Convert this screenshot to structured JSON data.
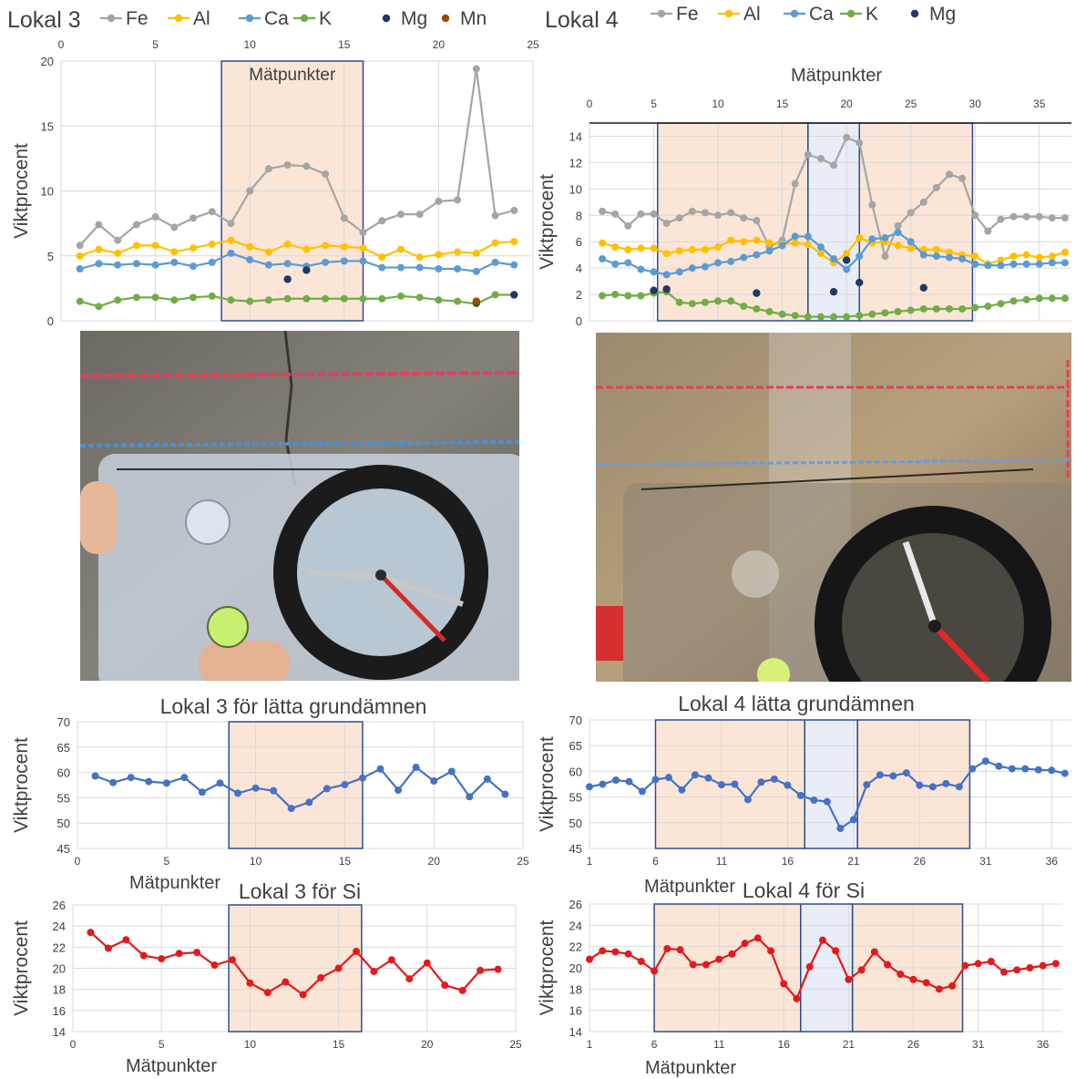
{
  "colors": {
    "Fe": "#a5a5a5",
    "Al": "#ffc000",
    "Ca": "#5b9bd5",
    "K": "#70ad47",
    "Mg": "#203864",
    "Mn": "#9e480e",
    "light": "#4472c4",
    "Si": "#e31a1c",
    "measure_fill": "#fbe5d6",
    "window_fill": "#e9edf7",
    "box_stroke": "#2f4f8f"
  },
  "photos": {
    "lokal3": {
      "description_icon": "rock-surface-with-compass-photo"
    },
    "lokal4": {
      "description_icon": "rock-surface-with-compass-photo"
    }
  },
  "chart_data": [
    {
      "id": "lokal3_main",
      "type": "line",
      "title": "Lokal 3",
      "box_label": "Mätpunkter",
      "ylabel": "Viktprocent",
      "xlim": [
        0,
        25
      ],
      "ylim": [
        0,
        20
      ],
      "xticks": [
        0,
        5,
        10,
        15,
        20,
        25
      ],
      "yticks": [
        0,
        5,
        10,
        15,
        20
      ],
      "x_axis_position": "top",
      "grid": true,
      "legend": "top",
      "shaded_regions": [
        {
          "from": 8.5,
          "to": 16,
          "kind": "measure"
        }
      ],
      "series": [
        {
          "name": "Fe",
          "style": "line",
          "x": [
            1,
            2,
            3,
            4,
            5,
            6,
            7,
            8,
            9,
            10,
            11,
            12,
            13,
            14,
            15,
            16,
            17,
            18,
            19,
            20,
            21,
            22,
            23,
            24
          ],
          "values": [
            5.8,
            7.4,
            6.2,
            7.4,
            8.0,
            7.2,
            7.9,
            8.4,
            7.5,
            10.0,
            11.7,
            12.0,
            11.9,
            11.3,
            7.9,
            6.8,
            7.7,
            8.2,
            8.2,
            9.2,
            9.3,
            19.4,
            8.1,
            8.5
          ]
        },
        {
          "name": "Al",
          "style": "line",
          "x": [
            1,
            2,
            3,
            4,
            5,
            6,
            7,
            8,
            9,
            10,
            11,
            12,
            13,
            14,
            15,
            16,
            17,
            18,
            19,
            20,
            21,
            22,
            23,
            24
          ],
          "values": [
            5.0,
            5.5,
            5.2,
            5.8,
            5.8,
            5.3,
            5.6,
            5.9,
            6.2,
            5.7,
            5.3,
            5.9,
            5.5,
            5.8,
            5.7,
            5.6,
            4.9,
            5.5,
            4.9,
            5.1,
            5.3,
            5.2,
            6.0,
            6.1
          ]
        },
        {
          "name": "Ca",
          "style": "line",
          "x": [
            1,
            2,
            3,
            4,
            5,
            6,
            7,
            8,
            9,
            10,
            11,
            12,
            13,
            14,
            15,
            16,
            17,
            18,
            19,
            20,
            21,
            22,
            23,
            24
          ],
          "values": [
            4.0,
            4.4,
            4.3,
            4.4,
            4.3,
            4.5,
            4.2,
            4.5,
            5.2,
            4.7,
            4.3,
            4.4,
            4.2,
            4.5,
            4.6,
            4.6,
            4.1,
            4.1,
            4.1,
            4.0,
            4.0,
            3.8,
            4.5,
            4.3
          ]
        },
        {
          "name": "K",
          "style": "line",
          "x": [
            1,
            2,
            3,
            4,
            5,
            6,
            7,
            8,
            9,
            10,
            11,
            12,
            13,
            14,
            15,
            16,
            17,
            18,
            19,
            20,
            21,
            22,
            23,
            24
          ],
          "values": [
            1.5,
            1.1,
            1.6,
            1.8,
            1.8,
            1.6,
            1.8,
            1.9,
            1.6,
            1.5,
            1.6,
            1.7,
            1.7,
            1.7,
            1.7,
            1.7,
            1.7,
            1.9,
            1.8,
            1.6,
            1.5,
            1.3,
            2.0,
            2.0
          ]
        },
        {
          "name": "Mg",
          "style": "points",
          "x": [
            12,
            13,
            22,
            24
          ],
          "values": [
            3.2,
            3.9,
            1.4,
            2.0
          ]
        },
        {
          "name": "Mn",
          "style": "points",
          "x": [
            22
          ],
          "values": [
            1.5
          ]
        }
      ]
    },
    {
      "id": "lokal4_main",
      "type": "line",
      "title": "Lokal 4",
      "xlabel": "Mätpunkter",
      "ylabel": "Viktprocent",
      "xlim": [
        0,
        37.5
      ],
      "ylim": [
        0,
        15
      ],
      "xticks": [
        0,
        5,
        10,
        15,
        20,
        25,
        30,
        35
      ],
      "yticks": [
        0,
        2,
        4,
        6,
        8,
        10,
        12,
        14
      ],
      "x_axis_position": "top",
      "grid": true,
      "legend": "top",
      "shaded_regions": [
        {
          "from": 5.3,
          "to": 17,
          "kind": "measure"
        },
        {
          "from": 17,
          "to": 21,
          "kind": "window"
        },
        {
          "from": 21,
          "to": 29.8,
          "kind": "measure"
        }
      ],
      "series": [
        {
          "name": "Fe",
          "style": "line",
          "x": [
            1,
            2,
            3,
            4,
            5,
            6,
            7,
            8,
            9,
            10,
            11,
            12,
            13,
            14,
            15,
            16,
            17,
            18,
            19,
            20,
            21,
            22,
            23,
            24,
            25,
            26,
            27,
            28,
            29,
            30,
            31,
            32,
            33,
            34,
            35,
            36,
            37
          ],
          "values": [
            8.3,
            8.1,
            7.2,
            8.1,
            8.1,
            7.4,
            7.8,
            8.3,
            8.2,
            8.0,
            8.2,
            7.8,
            7.6,
            5.6,
            6.1,
            10.4,
            12.6,
            12.3,
            11.8,
            13.9,
            13.5,
            8.8,
            4.9,
            7.2,
            8.2,
            9.0,
            10.1,
            11.1,
            10.8,
            8.0,
            6.8,
            7.7,
            7.9,
            7.9,
            7.9,
            7.8,
            7.8
          ]
        },
        {
          "name": "Al",
          "style": "line",
          "x": [
            1,
            2,
            3,
            4,
            5,
            6,
            7,
            8,
            9,
            10,
            11,
            12,
            13,
            14,
            15,
            16,
            17,
            18,
            19,
            20,
            21,
            22,
            23,
            24,
            25,
            26,
            27,
            28,
            29,
            30,
            31,
            32,
            33,
            34,
            35,
            36,
            37
          ],
          "values": [
            5.9,
            5.6,
            5.4,
            5.5,
            5.5,
            5.1,
            5.3,
            5.4,
            5.4,
            5.6,
            6.1,
            6.0,
            6.1,
            5.9,
            5.8,
            5.9,
            5.8,
            5.1,
            4.4,
            5.1,
            6.3,
            5.9,
            6.0,
            5.7,
            5.5,
            5.4,
            5.4,
            5.2,
            5.0,
            4.9,
            4.3,
            4.6,
            4.9,
            5.0,
            4.8,
            4.9,
            5.2
          ]
        },
        {
          "name": "Ca",
          "style": "line",
          "x": [
            1,
            2,
            3,
            4,
            5,
            6,
            7,
            8,
            9,
            10,
            11,
            12,
            13,
            14,
            15,
            16,
            17,
            18,
            19,
            20,
            21,
            22,
            23,
            24,
            25,
            26,
            27,
            28,
            29,
            30,
            31,
            32,
            33,
            34,
            35,
            36,
            37
          ],
          "values": [
            4.7,
            4.3,
            4.4,
            3.9,
            3.7,
            3.5,
            3.7,
            4.0,
            4.1,
            4.4,
            4.5,
            4.8,
            5.0,
            5.3,
            5.7,
            6.4,
            6.4,
            5.6,
            4.7,
            3.9,
            4.9,
            6.2,
            6.3,
            6.7,
            6.0,
            5.0,
            4.9,
            4.8,
            4.7,
            4.3,
            4.2,
            4.2,
            4.3,
            4.3,
            4.3,
            4.4,
            4.4
          ]
        },
        {
          "name": "K",
          "style": "line",
          "x": [
            1,
            2,
            3,
            4,
            5,
            6,
            7,
            8,
            9,
            10,
            11,
            12,
            13,
            14,
            15,
            16,
            17,
            18,
            19,
            20,
            21,
            22,
            23,
            24,
            25,
            26,
            27,
            28,
            29,
            30,
            31,
            32,
            33,
            34,
            35,
            36,
            37
          ],
          "values": [
            1.9,
            2.0,
            1.9,
            1.9,
            2.1,
            2.2,
            1.4,
            1.3,
            1.4,
            1.5,
            1.5,
            1.1,
            0.9,
            0.7,
            0.5,
            0.4,
            0.3,
            0.3,
            0.3,
            0.3,
            0.4,
            0.5,
            0.6,
            0.7,
            0.8,
            0.9,
            0.9,
            0.9,
            0.9,
            1.0,
            1.1,
            1.3,
            1.5,
            1.6,
            1.7,
            1.7,
            1.7
          ]
        },
        {
          "name": "Mg",
          "style": "points",
          "x": [
            5,
            6,
            13,
            19,
            20,
            21,
            26
          ],
          "values": [
            2.3,
            2.4,
            2.1,
            2.2,
            4.6,
            2.9,
            2.5
          ]
        }
      ]
    },
    {
      "id": "lokal3_light",
      "type": "line",
      "title": "Lokal 3 för lätta grundämnen",
      "xlabel": "Mätpunkter",
      "ylabel": "Viktprocent",
      "xlim": [
        0,
        25
      ],
      "ylim": [
        45,
        70
      ],
      "xticks": [
        0,
        5,
        10,
        15,
        20,
        25
      ],
      "yticks": [
        45,
        50,
        55,
        60,
        65,
        70
      ],
      "grid": true,
      "shaded_regions": [
        {
          "from": 8.5,
          "to": 16,
          "kind": "measure"
        }
      ],
      "series": [
        {
          "name": "",
          "style": "line",
          "x": [
            1,
            2,
            3,
            4,
            5,
            6,
            7,
            8,
            9,
            10,
            11,
            12,
            13,
            14,
            15,
            16,
            17,
            18,
            19,
            20,
            21,
            22,
            23,
            24
          ],
          "values": [
            59.3,
            58.0,
            59.0,
            58.2,
            57.9,
            59.0,
            56.1,
            57.9,
            55.9,
            56.9,
            56.4,
            52.9,
            54.1,
            56.8,
            57.6,
            58.9,
            60.7,
            56.5,
            61.0,
            58.3,
            60.2,
            55.2,
            58.7,
            55.7
          ]
        }
      ]
    },
    {
      "id": "lokal4_light",
      "type": "line",
      "title": "Lokal 4 lätta grundämnen",
      "xlabel": "Mätpunkter",
      "ylabel": "Viktprocent",
      "xlim": [
        1,
        37.5
      ],
      "ylim": [
        45,
        70
      ],
      "xticks": [
        1,
        6,
        11,
        16,
        21,
        26,
        31,
        36
      ],
      "yticks": [
        45,
        50,
        55,
        60,
        65,
        70
      ],
      "grid": true,
      "shaded_regions": [
        {
          "from": 6,
          "to": 17.3,
          "kind": "measure"
        },
        {
          "from": 17.3,
          "to": 21.3,
          "kind": "window"
        },
        {
          "from": 21.3,
          "to": 29.8,
          "kind": "measure"
        }
      ],
      "series": [
        {
          "name": "",
          "style": "line",
          "x": [
            1,
            2,
            3,
            4,
            5,
            6,
            7,
            8,
            9,
            10,
            11,
            12,
            13,
            14,
            15,
            16,
            17,
            18,
            19,
            20,
            21,
            22,
            23,
            24,
            25,
            26,
            27,
            28,
            29,
            30,
            31,
            32,
            33,
            34,
            35,
            36,
            37
          ],
          "values": [
            57.0,
            57.5,
            58.3,
            58.0,
            56.1,
            58.4,
            58.8,
            56.4,
            59.3,
            58.7,
            57.4,
            57.5,
            54.5,
            57.9,
            58.5,
            57.3,
            55.3,
            54.4,
            54.1,
            48.9,
            50.6,
            57.4,
            59.3,
            59.1,
            59.7,
            57.3,
            57.0,
            57.6,
            57.0,
            60.5,
            62.0,
            61.0,
            60.5,
            60.5,
            60.3,
            60.2,
            59.6
          ]
        }
      ]
    },
    {
      "id": "lokal3_si",
      "type": "line",
      "title": "Lokal 3 för Si",
      "xlabel": "Mätpunkter",
      "ylabel": "Viktprocent",
      "xlim": [
        0,
        25
      ],
      "ylim": [
        14,
        26
      ],
      "xticks": [
        0,
        5,
        10,
        15,
        20,
        25
      ],
      "yticks": [
        14,
        16,
        18,
        20,
        22,
        24,
        26
      ],
      "grid": true,
      "shaded_regions": [
        {
          "from": 8.8,
          "to": 16.3,
          "kind": "measure"
        }
      ],
      "series": [
        {
          "name": "",
          "style": "line",
          "x": [
            1,
            2,
            3,
            4,
            5,
            6,
            7,
            8,
            9,
            10,
            11,
            12,
            13,
            14,
            15,
            16,
            17,
            18,
            19,
            20,
            21,
            22,
            23,
            24
          ],
          "values": [
            23.4,
            21.9,
            22.7,
            21.2,
            20.9,
            21.4,
            21.5,
            20.3,
            20.8,
            18.6,
            17.7,
            18.7,
            17.5,
            19.1,
            20.0,
            21.6,
            19.7,
            20.8,
            19.0,
            20.5,
            18.4,
            17.9,
            19.8,
            19.9
          ]
        }
      ]
    },
    {
      "id": "lokal4_si",
      "type": "line",
      "title": "Lokal 4 för Si",
      "xlabel": "Mätpunkter",
      "ylabel": "Viktprocent",
      "xlim": [
        1,
        37.5
      ],
      "ylim": [
        14,
        26
      ],
      "xticks": [
        1,
        6,
        11,
        16,
        21,
        26,
        31,
        36
      ],
      "yticks": [
        14,
        16,
        18,
        20,
        22,
        24,
        26
      ],
      "grid": true,
      "shaded_regions": [
        {
          "from": 6,
          "to": 17.3,
          "kind": "measure"
        },
        {
          "from": 17.3,
          "to": 21.3,
          "kind": "window"
        },
        {
          "from": 21.3,
          "to": 29.8,
          "kind": "measure"
        }
      ],
      "series": [
        {
          "name": "",
          "style": "line",
          "x": [
            1,
            2,
            3,
            4,
            5,
            6,
            7,
            8,
            9,
            10,
            11,
            12,
            13,
            14,
            15,
            16,
            17,
            18,
            19,
            20,
            21,
            22,
            23,
            24,
            25,
            26,
            27,
            28,
            29,
            30,
            31,
            32,
            33,
            34,
            35,
            36,
            37
          ],
          "values": [
            20.8,
            21.6,
            21.5,
            21.3,
            20.6,
            19.7,
            21.8,
            21.7,
            20.3,
            20.3,
            20.8,
            21.3,
            22.3,
            22.8,
            21.6,
            18.5,
            17.1,
            20.1,
            22.6,
            21.6,
            18.9,
            19.8,
            21.5,
            20.3,
            19.4,
            18.9,
            18.6,
            18.0,
            18.3,
            20.2,
            20.4,
            20.6,
            19.6,
            19.8,
            20.0,
            20.2,
            20.4
          ]
        }
      ]
    }
  ]
}
